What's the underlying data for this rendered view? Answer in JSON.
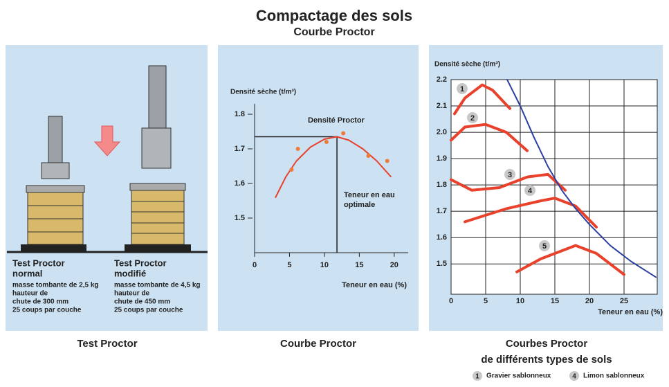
{
  "title": "Compactage des sols",
  "subtitle": "Courbe Proctor",
  "test_panel": {
    "caption": "Test Proctor",
    "normal": {
      "heading": [
        "Test Proctor",
        "normal"
      ],
      "lines": [
        "masse tombante de 2,5 kg",
        "hauteur de",
        "chute de 300 mm",
        "25 coups par couche"
      ]
    },
    "modified": {
      "heading": [
        "Test Proctor",
        "modifié"
      ],
      "lines": [
        "masse tombante de 4,5 kg",
        "hauteur de",
        "chute de 450 mm",
        "25 coups par couche"
      ]
    }
  },
  "chart_data": [
    {
      "type": "line",
      "caption": "Courbe Proctor",
      "y_label": "Densité sèche  (t/m³)",
      "x_label": "Teneur en eau (%)",
      "annotations": [
        "Densité Proctor",
        "Teneur en eau",
        "optimale"
      ],
      "xlim": [
        0,
        22
      ],
      "ylim": [
        1.4,
        1.83
      ],
      "xticks": [
        0,
        5,
        10,
        15,
        20
      ],
      "yticks": [
        1.5,
        1.6,
        1.7,
        1.8
      ],
      "optimum": {
        "x": 11.8,
        "y": 1.735
      },
      "series": [
        {
          "color": "#e8412c",
          "x": [
            3,
            4.5,
            6,
            8,
            10,
            11.8,
            13.5,
            15.5,
            17.5,
            19.5
          ],
          "values": [
            1.56,
            1.62,
            1.665,
            1.705,
            1.728,
            1.735,
            1.725,
            1.7,
            1.665,
            1.62
          ]
        }
      ],
      "points": {
        "color": "#f07a3a",
        "x": [
          5.3,
          6.2,
          10.3,
          12.7,
          16.3,
          19
        ],
        "values": [
          1.64,
          1.7,
          1.72,
          1.745,
          1.68,
          1.665
        ]
      }
    },
    {
      "type": "line",
      "caption": [
        "Courbes Proctor",
        "de différents types de sols"
      ],
      "y_label": "Densité sèche (t/m³)",
      "x_label": "Teneur en eau (%)",
      "xlim": [
        0,
        29.8
      ],
      "ylim": [
        1.385,
        2.2
      ],
      "xticks": [
        0,
        5,
        10,
        15,
        20,
        25
      ],
      "yticks": [
        1.5,
        1.6,
        1.7,
        1.8,
        1.9,
        {
          "value": 2,
          "label": "2.0"
        },
        2.1,
        2.2
      ],
      "grid": true,
      "series": [
        {
          "badge": "1",
          "name": "Gravier sablonneux",
          "color": "#e8412c",
          "x": [
            0.5,
            2,
            4.5,
            6,
            8.5
          ],
          "values": [
            2.07,
            2.13,
            2.18,
            2.16,
            2.09
          ]
        },
        {
          "badge": "2",
          "color": "#e8412c",
          "x": [
            0,
            2,
            5,
            8,
            11
          ],
          "values": [
            1.97,
            2.02,
            2.03,
            2.0,
            1.93
          ]
        },
        {
          "badge": "3",
          "color": "#e8412c",
          "x": [
            0,
            3,
            7,
            11,
            14,
            16.5
          ],
          "values": [
            1.82,
            1.78,
            1.79,
            1.83,
            1.84,
            1.78
          ]
        },
        {
          "badge": "4",
          "name": "Limon sablonneux",
          "color": "#e8412c",
          "x": [
            2,
            8,
            13,
            15,
            18,
            21
          ],
          "values": [
            1.66,
            1.71,
            1.74,
            1.75,
            1.72,
            1.64
          ]
        },
        {
          "badge": "5",
          "color": "#e8412c",
          "x": [
            9.5,
            13,
            18,
            21,
            25
          ],
          "values": [
            1.47,
            1.52,
            1.57,
            1.54,
            1.46
          ]
        },
        {
          "color": "#2a3fa0",
          "x": [
            8.1,
            10,
            12,
            14,
            16,
            18,
            20,
            23,
            26,
            29.6
          ],
          "values": [
            2.2,
            2.1,
            1.98,
            1.87,
            1.78,
            1.71,
            1.65,
            1.57,
            1.51,
            1.45
          ]
        }
      ]
    }
  ]
}
